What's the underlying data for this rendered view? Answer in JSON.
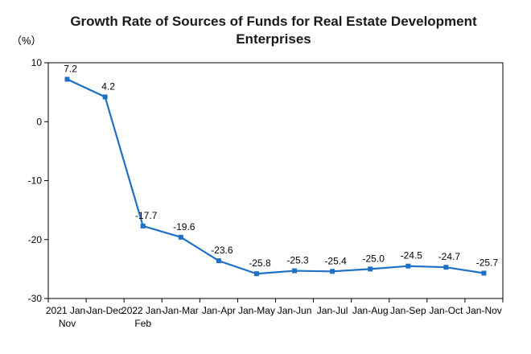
{
  "chart_data": {
    "type": "line",
    "title": "Growth Rate of Sources of Funds for Real Estate Development Enterprises",
    "unit_label": "（%）",
    "categories": [
      [
        "2021 Jan-",
        "Nov"
      ],
      [
        "Jan-Dec"
      ],
      [
        "2022 Jan-",
        "Feb"
      ],
      [
        "Jan-Mar"
      ],
      [
        "Jan-Apr"
      ],
      [
        "Jan-May"
      ],
      [
        "Jan-Jun"
      ],
      [
        "Jan-Jul"
      ],
      [
        "Jan-Aug"
      ],
      [
        "Jan-Sep"
      ],
      [
        "Jan-Oct"
      ],
      [
        "Jan-Nov"
      ]
    ],
    "values": [
      7.2,
      4.2,
      -17.7,
      -19.6,
      -23.6,
      -25.8,
      -25.3,
      -25.4,
      -25.0,
      -24.5,
      -24.7,
      -25.7
    ],
    "value_labels": [
      "7.2",
      "4.2",
      "-17.7",
      "-19.6",
      "-23.6",
      "-25.8",
      "-25.3",
      "-25.4",
      "-25.0",
      "-24.5",
      "-24.7",
      "-25.7"
    ],
    "ylim": [
      -30,
      10
    ],
    "yticks": [
      10,
      0,
      -10,
      -20,
      -30
    ],
    "ytick_labels": [
      "10",
      "0",
      "-10",
      "-20",
      "-30"
    ],
    "grid": false,
    "line_color": "#1f6fc5",
    "xlabel": "",
    "ylabel": ""
  }
}
